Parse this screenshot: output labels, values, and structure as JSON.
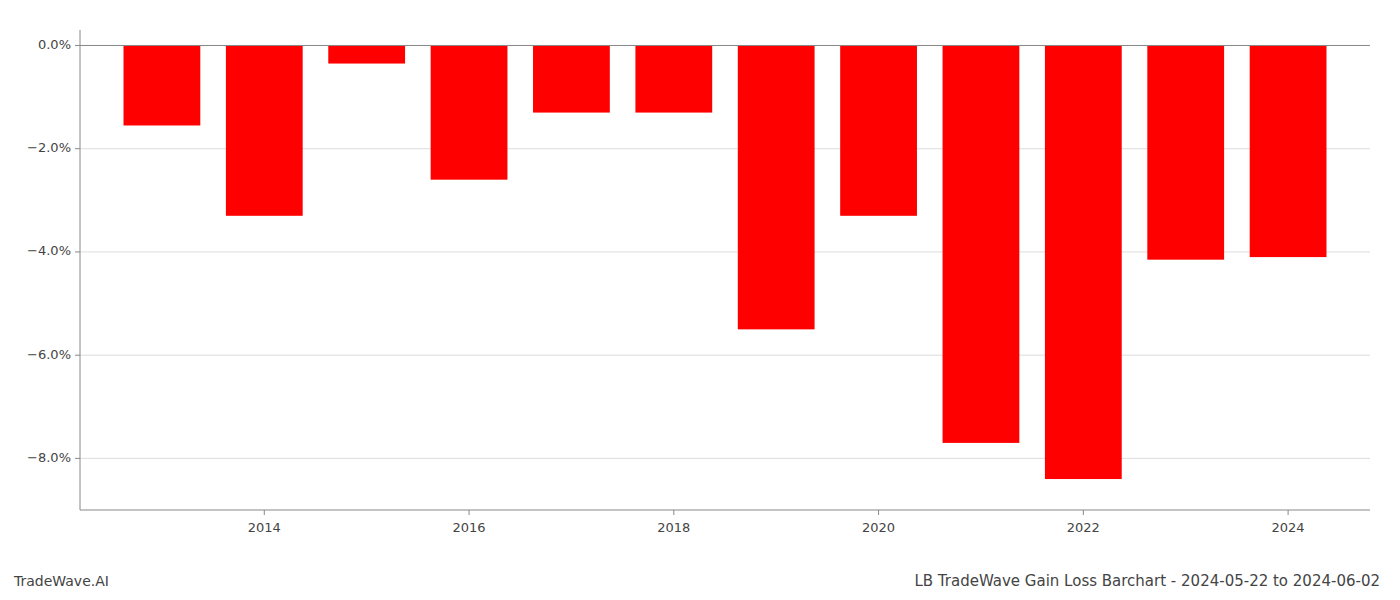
{
  "chart_data": {
    "type": "bar",
    "title": "LB TradeWave Gain Loss Barchart - 2024-05-22 to 2024-06-02",
    "annotations": [
      "TradeWave.AI"
    ],
    "x": [
      2013,
      2014,
      2015,
      2016,
      2017,
      2018,
      2019,
      2020,
      2021,
      2022,
      2023,
      2024
    ],
    "values": [
      -1.55,
      -3.3,
      -0.35,
      -2.6,
      -1.3,
      -1.3,
      -5.5,
      -3.3,
      -7.7,
      -8.4,
      -4.15,
      -4.1
    ],
    "color": "#ff0000",
    "xlim": [
      2012.2,
      2024.8
    ],
    "xticks": [
      2014,
      2016,
      2018,
      2020,
      2022,
      2024
    ],
    "ylim": [
      -9.0,
      0.3
    ],
    "yticks": [
      {
        "value": 0.0,
        "label": "0.0%"
      },
      {
        "value": -2.0,
        "label": "−2.0%"
      },
      {
        "value": -4.0,
        "label": "−4.0%"
      },
      {
        "value": -6.0,
        "label": "−6.0%"
      },
      {
        "value": -8.0,
        "label": "−8.0%"
      }
    ],
    "grid": true
  }
}
